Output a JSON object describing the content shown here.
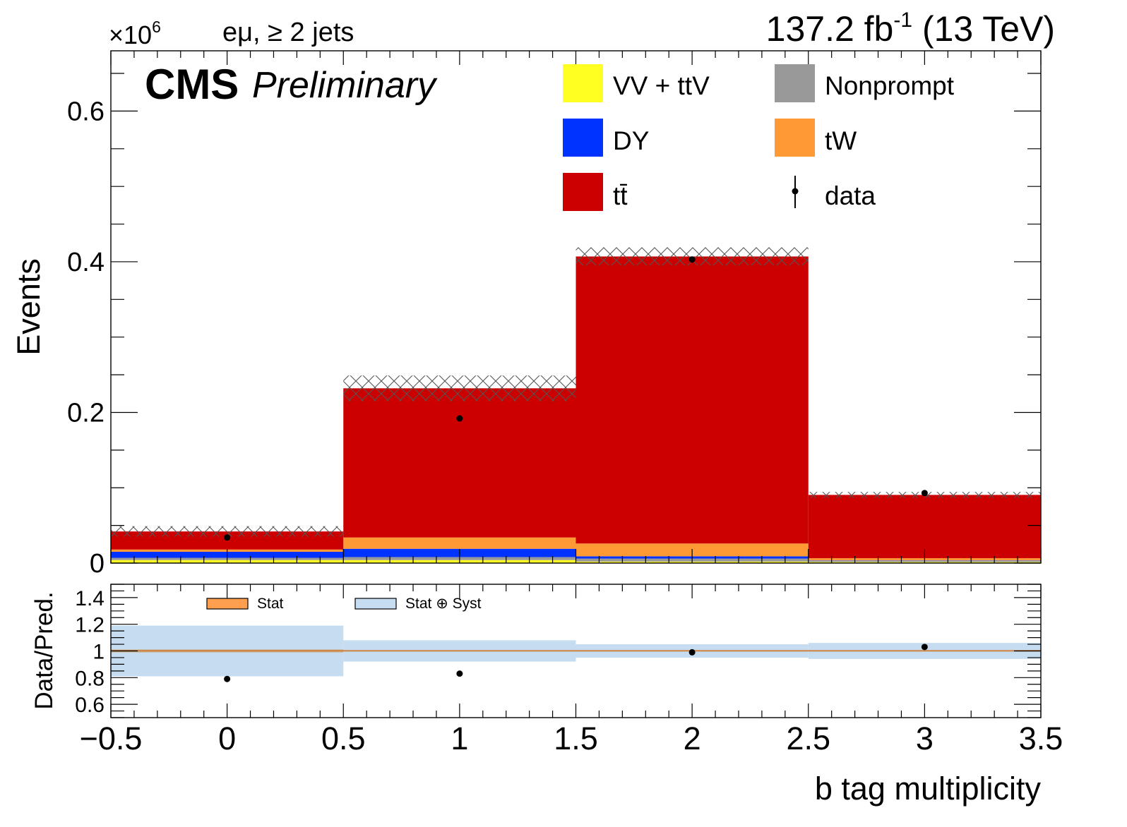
{
  "chart_data": [
    {
      "type": "bar",
      "stacked": true,
      "categories": [
        "0",
        "1",
        "2",
        "3"
      ],
      "bin_edges": [
        -0.5,
        0.5,
        1.5,
        2.5,
        3.5
      ],
      "series": [
        {
          "name": "VV + ttV",
          "color": "#ffff22",
          "values": [
            0.004,
            0.004,
            0.002,
            0.0015
          ]
        },
        {
          "name": "Nonprompt",
          "color": "#999999",
          "values": [
            0.003,
            0.004,
            0.004,
            0.0015
          ]
        },
        {
          "name": "DY",
          "color": "#0033ff",
          "values": [
            0.008,
            0.011,
            0.003,
            0.0005
          ]
        },
        {
          "name": "tW",
          "color": "#ff9933",
          "values": [
            0.003,
            0.015,
            0.017,
            0.003
          ]
        },
        {
          "name": "tt̄",
          "color": "#cc0000",
          "values": [
            0.024,
            0.198,
            0.381,
            0.084
          ]
        }
      ],
      "data": {
        "name": "data",
        "x": [
          0,
          1,
          2,
          3
        ],
        "values": [
          0.034,
          0.192,
          0.403,
          0.093
        ]
      },
      "uncertainty_half": [
        0.007,
        0.017,
        0.012,
        0.004
      ],
      "title_left": "eμ, ≥ 2 jets",
      "title_right_main": "137.2 fb",
      "title_right_sup": "-1",
      "title_right_tail": " (13 TeV)",
      "exponent_base": "×10",
      "exponent_sup": "6",
      "cms_label": "CMS",
      "preliminary_label": "Preliminary",
      "ylabel": "Events",
      "ylim": [
        0,
        0.68
      ],
      "yticks": [
        "0",
        "0.2",
        "0.4",
        "0.6"
      ],
      "legend_position": "top-right"
    },
    {
      "type": "bar",
      "categories": [
        "0",
        "1",
        "2",
        "3"
      ],
      "ratio": [
        0.79,
        0.83,
        0.99,
        1.03
      ],
      "stat_band": [
        0.01,
        0.005,
        0.004,
        0.003
      ],
      "syst_band": [
        0.19,
        0.08,
        0.05,
        0.06
      ],
      "ylabel": "Data/Pred.",
      "ylim": [
        0.5,
        1.5
      ],
      "yticks": [
        "0.6",
        "0.8",
        "1",
        "1.2",
        "1.4"
      ],
      "legend": [
        "Stat",
        "Stat ⊕ Syst"
      ],
      "stat_color": "#ff9e4f",
      "syst_color": "#c6dcf0",
      "xlabel": "b tag multiplicity",
      "xticks": [
        "−0.5",
        "0",
        "0.5",
        "1",
        "1.5",
        "2",
        "2.5",
        "3",
        "3.5"
      ]
    }
  ]
}
